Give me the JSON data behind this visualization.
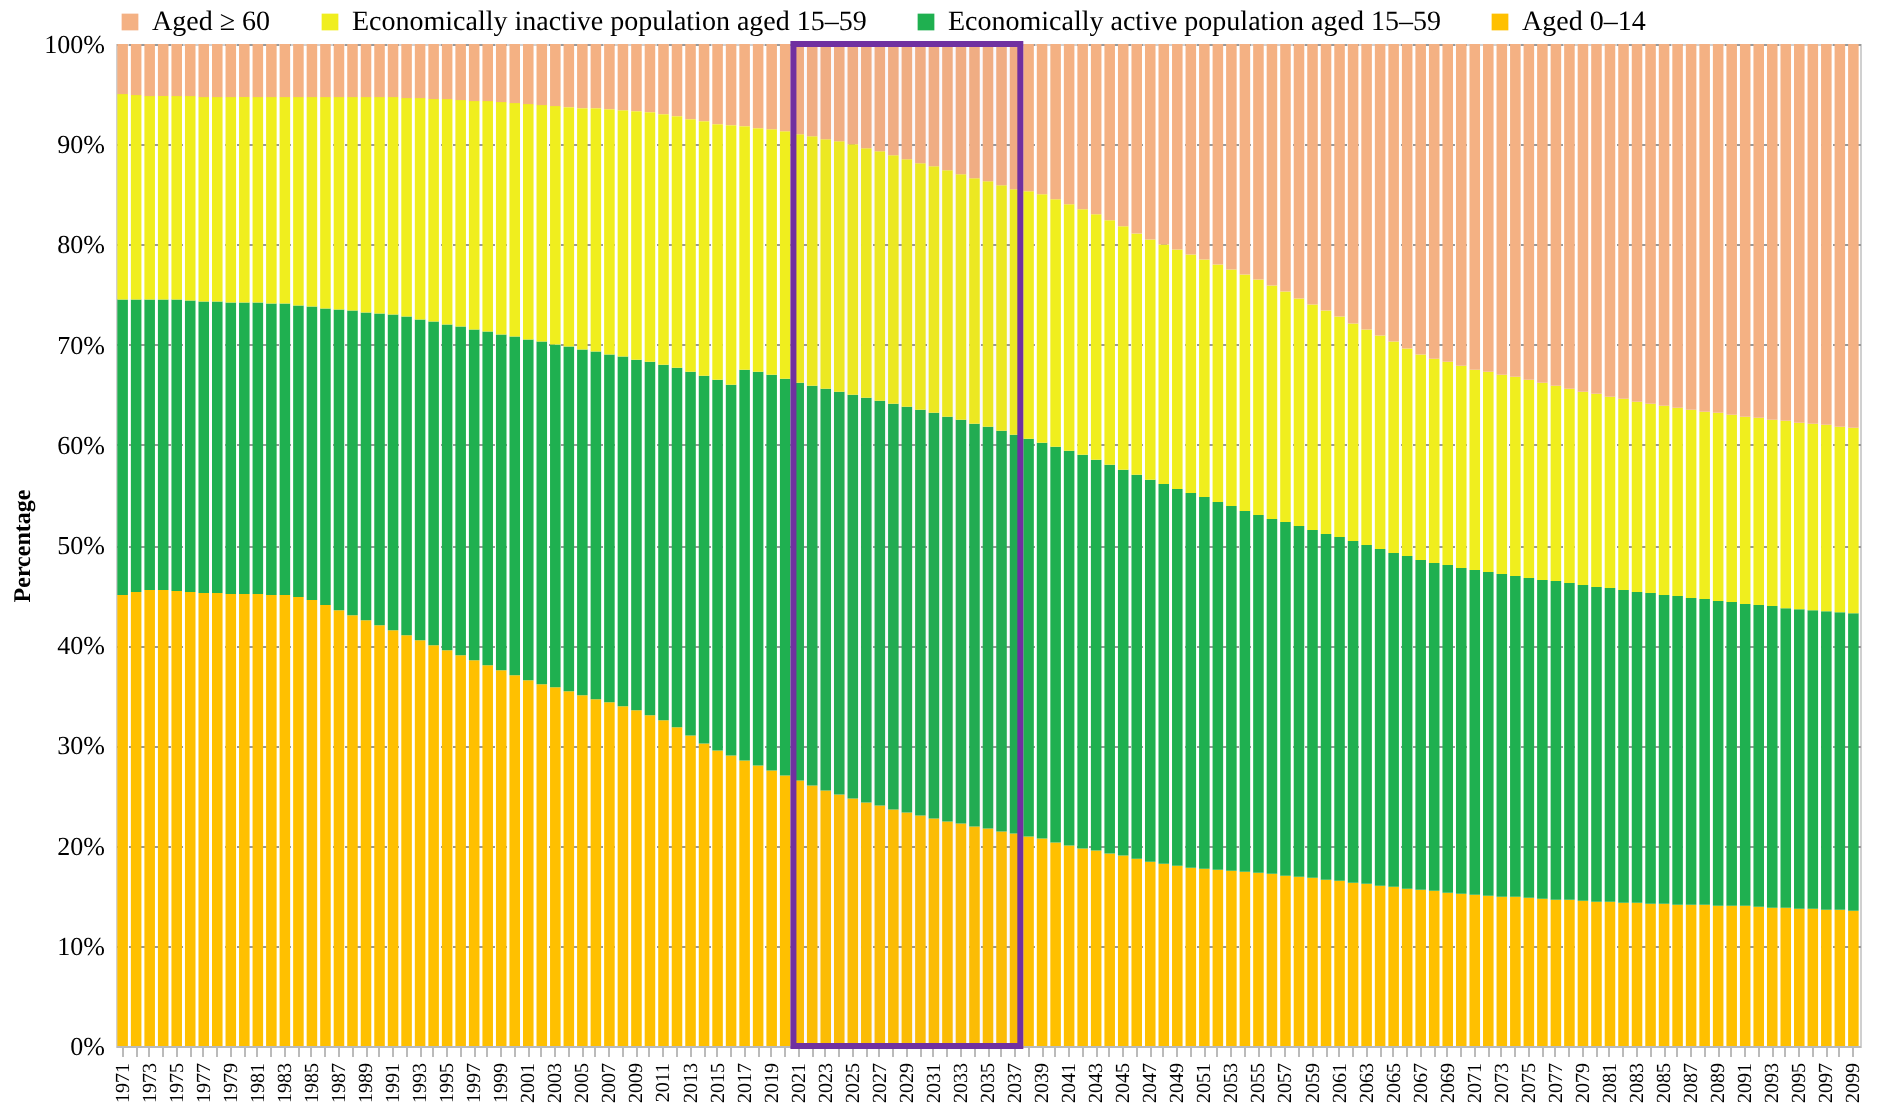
{
  "chart_data": {
    "type": "bar",
    "stacked": true,
    "ylabel": "Percentage",
    "legend": "top",
    "grid": "y",
    "categories": [
      "1971",
      null,
      "1973",
      null,
      "1975",
      null,
      "1977",
      null,
      "1979",
      null,
      "1981",
      null,
      "1983",
      null,
      "1985",
      null,
      "1987",
      null,
      "1989",
      null,
      "1991",
      null,
      "1993",
      null,
      "1995",
      null,
      "1997",
      null,
      "1999",
      null,
      "2001",
      null,
      "2003",
      null,
      "2005",
      null,
      "2007",
      null,
      "2009",
      null,
      "2011",
      null,
      "2013",
      null,
      "2015",
      null,
      "2017",
      null,
      "2019",
      null,
      "2021",
      null,
      "2023",
      null,
      "2025",
      null,
      "2027",
      null,
      "2029",
      null,
      "2031",
      null,
      "2033",
      null,
      "2035",
      null,
      "2037",
      null,
      "2039",
      null,
      "2041",
      null,
      "2043",
      null,
      "2045",
      null,
      "2047",
      null,
      "2049",
      null,
      "2051",
      null,
      "2053",
      null,
      "2055",
      null,
      "2057",
      null,
      "2059",
      null,
      "2061",
      null,
      "2063",
      null,
      "2065",
      null,
      "2067",
      null,
      "2069",
      null,
      "2071",
      null,
      "2073",
      null,
      "2075",
      null,
      "2077",
      null,
      "2079",
      null,
      "2081",
      null,
      "2083",
      null,
      "2085",
      null,
      "2087",
      null,
      "2089",
      null,
      "2091",
      null,
      "2093",
      null,
      "2095",
      null,
      "2097",
      null,
      "2099"
    ],
    "series": [
      {
        "name": "Aged 0–14",
        "color": "#ffc000",
        "values": [
          45.0,
          45.3,
          45.5,
          45.5,
          45.4,
          45.3,
          45.2,
          45.2,
          45.1,
          45.1,
          45.1,
          45.0,
          45.0,
          44.8,
          44.5,
          44.0,
          43.5,
          43.0,
          42.5,
          42.0,
          41.5,
          41.0,
          40.5,
          40.0,
          39.5,
          39.0,
          38.5,
          38.0,
          37.5,
          37.0,
          36.5,
          36.1,
          35.8,
          35.4,
          35.0,
          34.6,
          34.3,
          33.9,
          33.5,
          33.0,
          32.5,
          31.8,
          31.0,
          30.2,
          29.5,
          29.0,
          28.5,
          28.0,
          27.5,
          27.0,
          26.5,
          26.0,
          25.5,
          25.1,
          24.7,
          24.3,
          24.0,
          23.6,
          23.3,
          23.0,
          22.7,
          22.4,
          22.2,
          21.9,
          21.7,
          21.4,
          21.2,
          20.9,
          20.7,
          20.3,
          20.0,
          19.7,
          19.5,
          19.2,
          19.0,
          18.7,
          18.4,
          18.2,
          18.0,
          17.8,
          17.7,
          17.6,
          17.5,
          17.4,
          17.3,
          17.2,
          17.0,
          16.9,
          16.8,
          16.6,
          16.5,
          16.3,
          16.2,
          16.0,
          15.9,
          15.7,
          15.6,
          15.5,
          15.3,
          15.2,
          15.1,
          15.0,
          14.9,
          14.9,
          14.8,
          14.7,
          14.6,
          14.6,
          14.5,
          14.4,
          14.4,
          14.3,
          14.3,
          14.2,
          14.2,
          14.1,
          14.1,
          14.1,
          14.0,
          14.0,
          14.0,
          13.9,
          13.8,
          13.8,
          13.7,
          13.7,
          13.6,
          13.6,
          13.5
        ]
      },
      {
        "name": "Economically active population aged 15–59",
        "color": "#1fb050",
        "values": [
          29.5,
          29.2,
          29.0,
          29.0,
          29.1,
          29.1,
          29.1,
          29.1,
          29.1,
          29.1,
          29.1,
          29.1,
          29.1,
          29.1,
          29.3,
          29.6,
          30.0,
          30.4,
          30.7,
          31.1,
          31.5,
          31.8,
          32.0,
          32.3,
          32.5,
          32.8,
          33.0,
          33.3,
          33.5,
          33.8,
          34.0,
          34.2,
          34.2,
          34.4,
          34.5,
          34.7,
          34.7,
          34.9,
          35.0,
          35.3,
          35.5,
          35.9,
          36.3,
          36.7,
          37.0,
          37.0,
          39.0,
          39.3,
          39.5,
          39.6,
          39.7,
          39.9,
          40.1,
          40.2,
          40.3,
          40.4,
          40.4,
          40.5,
          40.5,
          40.5,
          40.5,
          40.4,
          40.3,
          40.2,
          40.1,
          40.0,
          39.8,
          39.7,
          39.5,
          39.5,
          39.4,
          39.3,
          39.0,
          38.8,
          38.5,
          38.3,
          38.1,
          37.9,
          37.6,
          37.4,
          37.1,
          36.7,
          36.4,
          36.0,
          35.7,
          35.4,
          35.3,
          35.0,
          34.7,
          34.5,
          34.3,
          34.1,
          33.8,
          33.6,
          33.3,
          33.2,
          32.9,
          32.7,
          32.7,
          32.5,
          32.4,
          32.3,
          32.2,
          32.0,
          31.9,
          31.8,
          31.8,
          31.6,
          31.5,
          31.4,
          31.3,
          31.2,
          31.0,
          31.0,
          30.8,
          30.8,
          30.6,
          30.5,
          30.4,
          30.3,
          30.1,
          30.1,
          30.1,
          29.9,
          29.9,
          29.8,
          29.8,
          29.7,
          29.7
        ]
      },
      {
        "name": "Economically inactive population aged 15–59",
        "color": "#f0ee1e",
        "values": [
          20.5,
          20.4,
          20.3,
          20.3,
          20.3,
          20.4,
          20.4,
          20.4,
          20.5,
          20.5,
          20.5,
          20.6,
          20.6,
          20.8,
          20.9,
          21.1,
          21.2,
          21.3,
          21.5,
          21.6,
          21.7,
          21.8,
          22.1,
          22.2,
          22.5,
          22.6,
          22.8,
          23.0,
          23.2,
          23.3,
          23.5,
          23.6,
          23.8,
          23.9,
          24.1,
          24.3,
          24.5,
          24.6,
          24.8,
          24.9,
          25.0,
          25.1,
          25.2,
          25.4,
          25.5,
          25.9,
          24.3,
          24.3,
          24.5,
          24.7,
          24.8,
          24.9,
          24.9,
          25.0,
          25.0,
          24.9,
          24.9,
          24.8,
          24.7,
          24.6,
          24.6,
          24.6,
          24.5,
          24.5,
          24.5,
          24.5,
          24.5,
          24.7,
          24.8,
          24.7,
          24.6,
          24.5,
          24.5,
          24.4,
          24.3,
          24.1,
          24.0,
          23.9,
          23.9,
          23.8,
          23.7,
          23.7,
          23.6,
          23.6,
          23.5,
          23.3,
          23.0,
          22.7,
          22.5,
          22.3,
          22.0,
          21.7,
          21.5,
          21.3,
          21.1,
          20.7,
          20.5,
          20.4,
          20.3,
          20.2,
          20.0,
          20.0,
          19.9,
          19.9,
          19.8,
          19.7,
          19.5,
          19.4,
          19.3,
          19.3,
          19.1,
          19.1,
          19.0,
          18.9,
          18.9,
          18.8,
          18.8,
          18.7,
          18.8,
          18.7,
          18.7,
          18.7,
          18.6,
          18.7,
          18.6,
          18.6,
          18.6,
          18.5,
          18.5
        ]
      },
      {
        "name": "Aged ≥ 60",
        "color": "#f4b183",
        "values": [
          5.0,
          5.1,
          5.2,
          5.2,
          5.2,
          5.2,
          5.3,
          5.3,
          5.3,
          5.3,
          5.3,
          5.3,
          5.3,
          5.3,
          5.3,
          5.3,
          5.3,
          5.3,
          5.3,
          5.3,
          5.3,
          5.4,
          5.4,
          5.5,
          5.5,
          5.6,
          5.7,
          5.7,
          5.8,
          5.9,
          6.0,
          6.1,
          6.2,
          6.3,
          6.4,
          6.4,
          6.5,
          6.6,
          6.7,
          6.8,
          7.0,
          7.2,
          7.5,
          7.7,
          8.0,
          8.1,
          8.2,
          8.4,
          8.5,
          8.7,
          9.0,
          9.2,
          9.5,
          9.7,
          10.0,
          10.4,
          10.7,
          11.1,
          11.5,
          11.9,
          12.2,
          12.6,
          13.0,
          13.4,
          13.7,
          14.1,
          14.5,
          14.7,
          15.0,
          15.5,
          16.0,
          16.5,
          17.0,
          17.6,
          18.2,
          18.9,
          19.5,
          20.0,
          20.5,
          21.0,
          21.5,
          22.0,
          22.5,
          23.0,
          23.5,
          24.1,
          24.7,
          25.4,
          26.0,
          26.6,
          27.2,
          27.9,
          28.5,
          29.1,
          29.7,
          30.4,
          31.0,
          31.4,
          31.7,
          32.1,
          32.5,
          32.7,
          33.0,
          33.2,
          33.5,
          33.8,
          34.1,
          34.4,
          34.7,
          34.9,
          35.2,
          35.4,
          35.7,
          35.9,
          36.1,
          36.3,
          36.5,
          36.7,
          36.8,
          37.0,
          37.2,
          37.3,
          37.5,
          37.6,
          37.8,
          37.9,
          38.0,
          38.2,
          38.3
        ]
      }
    ],
    "ylim": [
      0,
      100
    ],
    "yticks": [
      {
        "value": 0,
        "label": "0%"
      },
      {
        "value": 10,
        "label": "10%"
      },
      {
        "value": 20,
        "label": "20%"
      },
      {
        "value": 30,
        "label": "30%"
      },
      {
        "value": 40,
        "label": "40%"
      },
      {
        "value": 50,
        "label": "50%"
      },
      {
        "value": 60,
        "label": "60%"
      },
      {
        "value": 70,
        "label": "70%"
      },
      {
        "value": 80,
        "label": "80%"
      },
      {
        "value": 90,
        "label": "90%"
      },
      {
        "value": 100,
        "label": "100%"
      }
    ],
    "bands": [
      {
        "axis": "x",
        "from": "2021",
        "to": "2037",
        "color": "#7030a0"
      }
    ]
  }
}
